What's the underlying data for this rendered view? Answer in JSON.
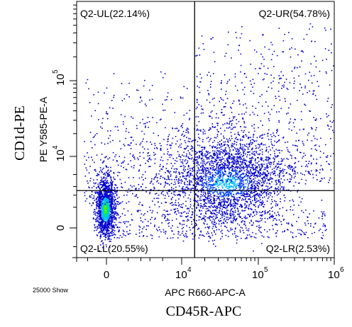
{
  "chart_data": {
    "type": "scatter",
    "subtype": "flow-cytometry-density-dot-plot",
    "x_scale": "biexponential",
    "y_scale": "biexponential",
    "x_param_label": "APC R660-APC-A",
    "y_param_label": "PE Y585-PE-A",
    "x_marker_label": "CD45R-APC",
    "y_marker_label": "CD1d-PE",
    "x_ticks": [
      {
        "value": 0,
        "base": "0",
        "exp": ""
      },
      {
        "value": 10000,
        "base": "10",
        "exp": "4"
      },
      {
        "value": 100000,
        "base": "10",
        "exp": "5"
      },
      {
        "value": 1000000,
        "base": "10",
        "exp": "6"
      }
    ],
    "y_ticks": [
      {
        "value": 0,
        "base": "0",
        "exp": ""
      },
      {
        "value": 10000,
        "base": "10",
        "exp": "4"
      },
      {
        "value": 100000,
        "base": "10",
        "exp": "5"
      }
    ],
    "quadrant_gate": {
      "x": 15000,
      "y": 2500
    },
    "quadrants": [
      {
        "name": "Q2-UL",
        "percent": 22.14,
        "label": "Q2-UL(22.14%)",
        "position": "top-left"
      },
      {
        "name": "Q2-UR",
        "percent": 54.78,
        "label": "Q2-UR(54.78%)",
        "position": "top-right"
      },
      {
        "name": "Q2-LL",
        "percent": 20.55,
        "label": "Q2-LL(20.55%)",
        "position": "bottom-left"
      },
      {
        "name": "Q2-LR",
        "percent": 2.53,
        "label": "Q2-LR(2.53%)",
        "position": "bottom-right"
      }
    ],
    "events_note": "25000 Show",
    "grid": false,
    "density_colors": [
      "#0000cc",
      "#0044ff",
      "#00bbff",
      "#00e090",
      "#55ee00"
    ]
  }
}
